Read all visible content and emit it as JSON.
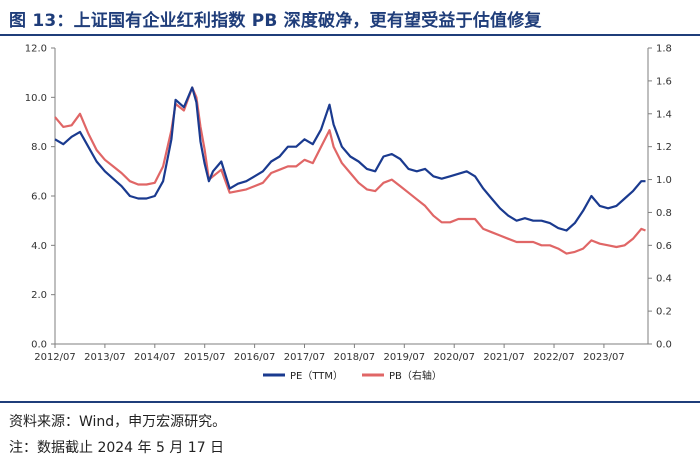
{
  "title": "图 13：上证国有企业红利指数 PB 深度破净，更有望受益于估值修复",
  "footer": {
    "source": "资料来源：Wind，申万宏源研究。",
    "note": "注：数据截止 2024 年 5 月 17 日"
  },
  "colors": {
    "pe": "#1a3a8f",
    "pb": "#e06666",
    "rule": "#1f3d7a"
  },
  "chart_data": {
    "type": "line",
    "x_ticks": [
      "2012/07",
      "2013/07",
      "2014/07",
      "2015/07",
      "2016/07",
      "2017/07",
      "2018/07",
      "2019/07",
      "2020/07",
      "2021/07",
      "2022/07",
      "2023/07"
    ],
    "x_range": [
      "2012/07",
      "2024/05"
    ],
    "ylim_left": [
      0,
      12
    ],
    "yticks_left": [
      "0.0",
      "2.0",
      "4.0",
      "6.0",
      "8.0",
      "10.0",
      "12.0"
    ],
    "ylim_right": [
      0,
      1.8
    ],
    "yticks_right": [
      "0.0",
      "0.2",
      "0.4",
      "0.6",
      "0.8",
      "1.0",
      "1.2",
      "1.4",
      "1.6",
      "1.8"
    ],
    "grid": false,
    "legend_position": "bottom-center",
    "series": [
      {
        "name": "PE（TTM）",
        "axis": "left",
        "points": [
          [
            "2012/07",
            8.3
          ],
          [
            "2012/09",
            8.1
          ],
          [
            "2012/11",
            8.4
          ],
          [
            "2013/01",
            8.6
          ],
          [
            "2013/03",
            8.0
          ],
          [
            "2013/05",
            7.4
          ],
          [
            "2013/07",
            7.0
          ],
          [
            "2013/09",
            6.7
          ],
          [
            "2013/11",
            6.4
          ],
          [
            "2014/01",
            6.0
          ],
          [
            "2014/03",
            5.9
          ],
          [
            "2014/05",
            5.9
          ],
          [
            "2014/07",
            6.0
          ],
          [
            "2014/09",
            6.6
          ],
          [
            "2014/11",
            8.3
          ],
          [
            "2014/12",
            9.9
          ],
          [
            "2015/02",
            9.6
          ],
          [
            "2015/04",
            10.4
          ],
          [
            "2015/05",
            9.8
          ],
          [
            "2015/06",
            8.2
          ],
          [
            "2015/07",
            7.3
          ],
          [
            "2015/08",
            6.6
          ],
          [
            "2015/09",
            7.0
          ],
          [
            "2015/11",
            7.4
          ],
          [
            "2016/01",
            6.3
          ],
          [
            "2016/03",
            6.5
          ],
          [
            "2016/05",
            6.6
          ],
          [
            "2016/07",
            6.8
          ],
          [
            "2016/09",
            7.0
          ],
          [
            "2016/11",
            7.4
          ],
          [
            "2017/01",
            7.6
          ],
          [
            "2017/03",
            8.0
          ],
          [
            "2017/05",
            8.0
          ],
          [
            "2017/07",
            8.3
          ],
          [
            "2017/09",
            8.1
          ],
          [
            "2017/11",
            8.7
          ],
          [
            "2018/01",
            9.7
          ],
          [
            "2018/02",
            8.9
          ],
          [
            "2018/04",
            8.0
          ],
          [
            "2018/06",
            7.6
          ],
          [
            "2018/08",
            7.4
          ],
          [
            "2018/10",
            7.1
          ],
          [
            "2018/12",
            7.0
          ],
          [
            "2019/02",
            7.6
          ],
          [
            "2019/04",
            7.7
          ],
          [
            "2019/06",
            7.5
          ],
          [
            "2019/08",
            7.1
          ],
          [
            "2019/10",
            7.0
          ],
          [
            "2019/12",
            7.1
          ],
          [
            "2020/02",
            6.8
          ],
          [
            "2020/04",
            6.7
          ],
          [
            "2020/06",
            6.8
          ],
          [
            "2020/08",
            6.9
          ],
          [
            "2020/10",
            7.0
          ],
          [
            "2020/12",
            6.8
          ],
          [
            "2021/02",
            6.3
          ],
          [
            "2021/04",
            5.9
          ],
          [
            "2021/06",
            5.5
          ],
          [
            "2021/08",
            5.2
          ],
          [
            "2021/10",
            5.0
          ],
          [
            "2021/12",
            5.1
          ],
          [
            "2022/02",
            5.0
          ],
          [
            "2022/04",
            5.0
          ],
          [
            "2022/06",
            4.9
          ],
          [
            "2022/08",
            4.7
          ],
          [
            "2022/10",
            4.6
          ],
          [
            "2022/12",
            4.9
          ],
          [
            "2023/02",
            5.4
          ],
          [
            "2023/04",
            6.0
          ],
          [
            "2023/06",
            5.6
          ],
          [
            "2023/08",
            5.5
          ],
          [
            "2023/10",
            5.6
          ],
          [
            "2023/12",
            5.9
          ],
          [
            "2024/02",
            6.2
          ],
          [
            "2024/04",
            6.6
          ],
          [
            "2024/05",
            6.6
          ]
        ]
      },
      {
        "name": "PB（右轴）",
        "axis": "right",
        "points": [
          [
            "2012/07",
            1.38
          ],
          [
            "2012/09",
            1.32
          ],
          [
            "2012/11",
            1.33
          ],
          [
            "2013/01",
            1.4
          ],
          [
            "2013/03",
            1.28
          ],
          [
            "2013/05",
            1.18
          ],
          [
            "2013/07",
            1.12
          ],
          [
            "2013/09",
            1.08
          ],
          [
            "2013/11",
            1.04
          ],
          [
            "2014/01",
            0.99
          ],
          [
            "2014/03",
            0.97
          ],
          [
            "2014/05",
            0.97
          ],
          [
            "2014/07",
            0.98
          ],
          [
            "2014/09",
            1.08
          ],
          [
            "2014/11",
            1.3
          ],
          [
            "2014/12",
            1.46
          ],
          [
            "2015/02",
            1.42
          ],
          [
            "2015/04",
            1.56
          ],
          [
            "2015/05",
            1.5
          ],
          [
            "2015/06",
            1.32
          ],
          [
            "2015/07",
            1.18
          ],
          [
            "2015/08",
            1.0
          ],
          [
            "2015/09",
            1.02
          ],
          [
            "2015/11",
            1.06
          ],
          [
            "2016/01",
            0.92
          ],
          [
            "2016/03",
            0.93
          ],
          [
            "2016/05",
            0.94
          ],
          [
            "2016/07",
            0.96
          ],
          [
            "2016/09",
            0.98
          ],
          [
            "2016/11",
            1.04
          ],
          [
            "2017/01",
            1.06
          ],
          [
            "2017/03",
            1.08
          ],
          [
            "2017/05",
            1.08
          ],
          [
            "2017/07",
            1.12
          ],
          [
            "2017/09",
            1.1
          ],
          [
            "2017/11",
            1.2
          ],
          [
            "2018/01",
            1.3
          ],
          [
            "2018/02",
            1.2
          ],
          [
            "2018/04",
            1.1
          ],
          [
            "2018/06",
            1.04
          ],
          [
            "2018/08",
            0.98
          ],
          [
            "2018/10",
            0.94
          ],
          [
            "2018/12",
            0.93
          ],
          [
            "2019/02",
            0.98
          ],
          [
            "2019/04",
            1.0
          ],
          [
            "2019/06",
            0.96
          ],
          [
            "2019/08",
            0.92
          ],
          [
            "2019/10",
            0.88
          ],
          [
            "2019/12",
            0.84
          ],
          [
            "2020/02",
            0.78
          ],
          [
            "2020/04",
            0.74
          ],
          [
            "2020/06",
            0.74
          ],
          [
            "2020/08",
            0.76
          ],
          [
            "2020/10",
            0.76
          ],
          [
            "2020/12",
            0.76
          ],
          [
            "2021/02",
            0.7
          ],
          [
            "2021/04",
            0.68
          ],
          [
            "2021/06",
            0.66
          ],
          [
            "2021/08",
            0.64
          ],
          [
            "2021/10",
            0.62
          ],
          [
            "2021/12",
            0.62
          ],
          [
            "2022/02",
            0.62
          ],
          [
            "2022/04",
            0.6
          ],
          [
            "2022/06",
            0.6
          ],
          [
            "2022/08",
            0.58
          ],
          [
            "2022/10",
            0.55
          ],
          [
            "2022/12",
            0.56
          ],
          [
            "2023/02",
            0.58
          ],
          [
            "2023/04",
            0.63
          ],
          [
            "2023/06",
            0.61
          ],
          [
            "2023/08",
            0.6
          ],
          [
            "2023/10",
            0.59
          ],
          [
            "2023/12",
            0.6
          ],
          [
            "2024/02",
            0.64
          ],
          [
            "2024/04",
            0.7
          ],
          [
            "2024/05",
            0.69
          ]
        ]
      }
    ]
  }
}
